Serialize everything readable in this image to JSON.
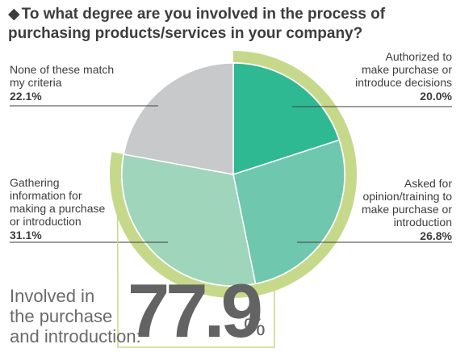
{
  "title": {
    "bullet": "◆",
    "text": "To what degree are you involved in the process of purchasing products/services in your company?"
  },
  "chart_data": {
    "type": "pie",
    "title": "To what degree are you involved in the process of purchasing products/services in your company?",
    "unit": "%",
    "start_angle_deg": 0,
    "direction": "clockwise",
    "slices": [
      {
        "key": "authorized",
        "label": "Authorized to\nmake purchase or\nintroduce decisions",
        "value": 20.0,
        "value_label": "20.0%",
        "color": "#2fb992"
      },
      {
        "key": "asked",
        "label": "Asked for\nopinion/training to\nmake purchase or\nintroduction",
        "value": 26.8,
        "value_label": "26.8%",
        "color": "#6fc7ad"
      },
      {
        "key": "gathering",
        "label": "Gathering\ninformation for\nmaking a purchase\nor introduction",
        "value": 31.1,
        "value_label": "31.1%",
        "color": "#9fd5bb"
      },
      {
        "key": "none",
        "label": "None of these match\nmy criteria",
        "value": 22.1,
        "value_label": "22.1%",
        "color": "#c8c9cb"
      }
    ],
    "highlight": {
      "label": "Involved in\nthe purchase\nand introduction:",
      "value": "77.9",
      "unit": "%",
      "ring_color": "#c6d98b"
    },
    "leader_line_color": "#3d3d3d"
  }
}
